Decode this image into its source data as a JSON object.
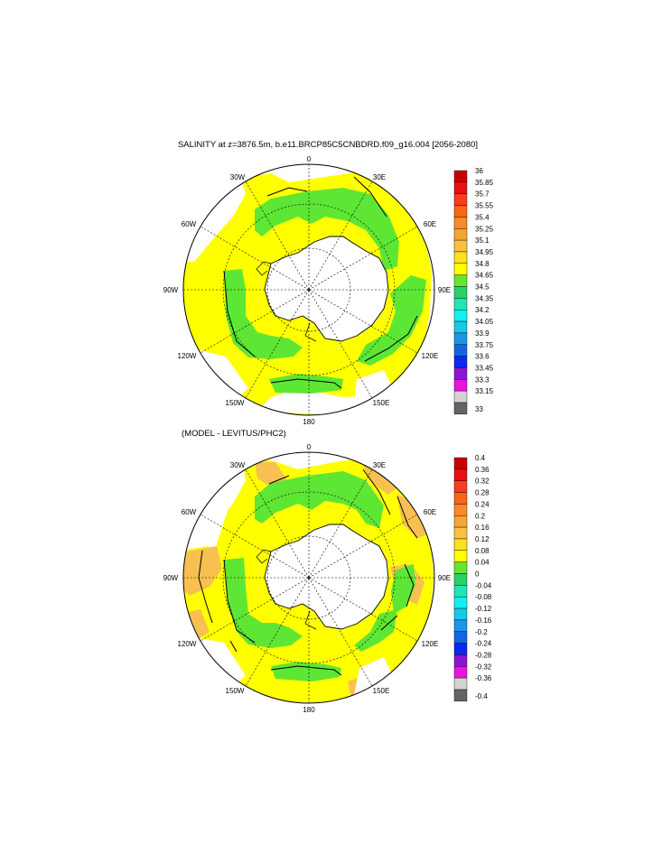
{
  "chart_data": [
    {
      "type": "heatmap",
      "projection": "south-polar-stereographic",
      "title": "SALINITY at z=3876.5m, b.e11.BRCP85C5CNBDRD.f09_g16.004 [2056-2080]",
      "longitude_labels": [
        "0",
        "30E",
        "60E",
        "90E",
        "120E",
        "150E",
        "180",
        "150W",
        "120W",
        "90W",
        "60W",
        "30W"
      ],
      "colorbar": {
        "levels": [
          "36",
          "35.85",
          "35.7",
          "35.55",
          "35.4",
          "35.25",
          "35.1",
          "34.95",
          "34.8",
          "34.65",
          "34.5",
          "34.35",
          "34.2",
          "34.05",
          "33.9",
          "33.75",
          "33.6",
          "33.45",
          "33.3",
          "33.15",
          "33"
        ],
        "colors": [
          "#c80000",
          "#e81010",
          "#f83c1c",
          "#fa6418",
          "#f88a28",
          "#f5a532",
          "#fac040",
          "#fbe020",
          "#ffff00",
          "#64e632",
          "#28d264",
          "#1ee6b4",
          "#14f0f0",
          "#19c8e6",
          "#1e96e6",
          "#1464e6",
          "#0a28f0",
          "#8c14d2",
          "#e614dc",
          "#d2d2d2",
          "#646464"
        ]
      }
    },
    {
      "type": "heatmap",
      "projection": "south-polar-stereographic",
      "title": "(MODEL - LEVITUS/PHC2)",
      "longitude_labels": [
        "0",
        "30E",
        "60E",
        "90E",
        "120E",
        "150E",
        "180",
        "150W",
        "120W",
        "90W",
        "60W",
        "30W"
      ],
      "colorbar": {
        "levels": [
          "0.4",
          "0.36",
          "0.32",
          "0.28",
          "0.24",
          "0.2",
          "0.16",
          "0.12",
          "0.08",
          "0.04",
          "0",
          "-0.04",
          "-0.08",
          "-0.12",
          "-0.16",
          "-0.2",
          "-0.24",
          "-0.28",
          "-0.32",
          "-0.36",
          "-0.4"
        ],
        "colors": [
          "#c80000",
          "#e81010",
          "#f83c1c",
          "#fa6418",
          "#f88a28",
          "#f5a532",
          "#fac040",
          "#fbe020",
          "#ffff00",
          "#64e632",
          "#28d264",
          "#1ee6b4",
          "#14f0f0",
          "#19c8e6",
          "#1e96e6",
          "#1464e6",
          "#0a28f0",
          "#8c14d2",
          "#e614dc",
          "#d2d2d2",
          "#646464"
        ]
      }
    }
  ]
}
